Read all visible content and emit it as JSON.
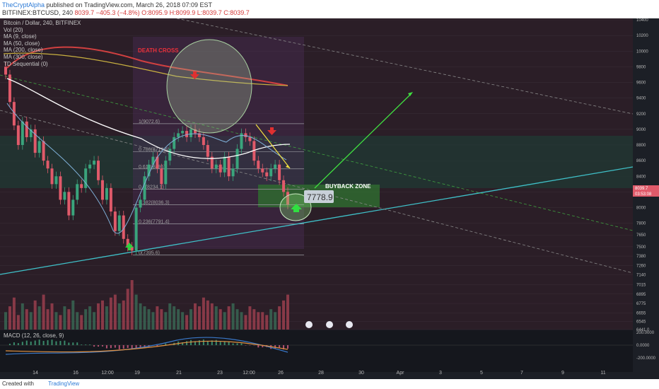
{
  "header": {
    "author": "TheCryptAlpha",
    "published": "published on TradingView.com, March 26, 2018 07:09 EST",
    "symbol_line": "BITFINEX:BTCUSD, 240",
    "last": "8039.7",
    "change": "−405.3 (−4.8%)",
    "ohlc": "O:8095.9 H:8099.9 L:8039.7 C:8039.7"
  },
  "legend": {
    "title": "Bitcoin / Dollar, 240, BITFINEX",
    "items": [
      "Vol (20)",
      "MA (9, close)",
      "MA (50, close)",
      "MA (200, close)",
      "MA (300, close)",
      "TD Sequential (0)"
    ]
  },
  "macd_label": "MACD (12, 26, close, 9)",
  "footer": {
    "created": "Created with",
    "brand": "TradingView"
  },
  "annotations": {
    "death_cross": "DEATH CROSS",
    "buyback_zone": "BUYBACK ZONE",
    "target_price": "7778.9"
  },
  "price_tags": {
    "last": "8039.7",
    "countdown": "03:53:08"
  },
  "chart_data": {
    "type": "candlestick",
    "x_ticks": [
      "14",
      "16",
      "12:00",
      "19",
      "21",
      "23",
      "12:00",
      "26",
      "28",
      "30",
      "Apr",
      "3",
      "5",
      "7",
      "9",
      "11"
    ],
    "y_ticks": [
      10400,
      10200,
      10000,
      9800,
      9600,
      9400,
      9200,
      9000,
      8800,
      8600,
      8400,
      8200,
      8000,
      7800,
      7650,
      7500,
      7380,
      7260,
      7140,
      7015,
      6895,
      6775,
      6655,
      6545,
      6441.0
    ],
    "macd_ticks": [
      "200.0000",
      "0.0000",
      "-200.0000"
    ],
    "fib_levels": [
      {
        "label": "1(9072.6)",
        "value": 9072.6
      },
      {
        "label": "0.786(8713.6)",
        "value": 8713.6
      },
      {
        "label": "0.618(8495)",
        "value": 8495
      },
      {
        "label": "0.5(8234.1)",
        "value": 8234.1
      },
      {
        "label": "0.382(8036.3)",
        "value": 8036.3
      },
      {
        "label": "0.236(7791.4)",
        "value": 7791.4
      },
      {
        "label": "0(7395.6)",
        "value": 7395.6
      }
    ],
    "closes": [
      9700,
      9350,
      9050,
      8800,
      9100,
      8900,
      9000,
      8700,
      8850,
      8600,
      8500,
      8300,
      8400,
      8100,
      8200,
      7900,
      8100,
      8300,
      8250,
      8500,
      8550,
      8600,
      8350,
      8100,
      8250,
      7950,
      7700,
      7900,
      7600,
      7500,
      7450,
      8000,
      8100,
      8400,
      8550,
      8650,
      8500,
      8300,
      8600,
      8750,
      8900,
      8950,
      8980,
      8900,
      9000,
      8950,
      8900,
      8800,
      8650,
      8500,
      8550,
      8450,
      8650,
      8400,
      8500,
      8750,
      8950,
      8900,
      8850,
      8600,
      8500,
      8450,
      8400,
      8500,
      8550,
      8350,
      8200,
      8039.7
    ],
    "volumes": [
      30,
      40,
      55,
      25,
      45,
      35,
      30,
      50,
      40,
      60,
      35,
      45,
      30,
      25,
      40,
      35,
      50,
      30,
      25,
      35,
      40,
      30,
      45,
      50,
      40,
      55,
      60,
      45,
      50,
      70,
      85,
      60,
      45,
      40,
      35,
      30,
      40,
      35,
      30,
      45,
      40,
      35,
      30,
      25,
      35,
      45,
      40,
      55,
      50,
      45,
      40,
      35,
      30,
      40,
      45,
      35,
      30,
      25,
      40,
      35,
      30,
      30,
      25,
      35,
      30,
      40,
      50,
      60
    ],
    "colors": {
      "up": "#3aa47c",
      "down": "#e05a6a",
      "ma9": "#7fb0d8",
      "ma50": "#ffffff",
      "ma200": "#d04040",
      "ma300": "#c8b040",
      "trend": "#3fc0c8"
    }
  }
}
